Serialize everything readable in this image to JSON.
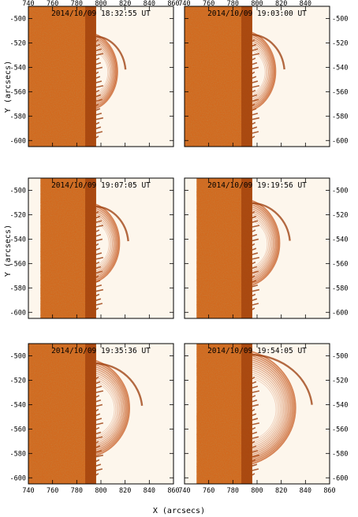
{
  "figure": {
    "x_axis_label": "X (arcsecs)",
    "y_axis_label": "Y (arcsecs)",
    "x_ticks": [
      "740",
      "760",
      "780",
      "800",
      "820",
      "840",
      "860"
    ],
    "y_ticks": [
      "-500",
      "-520",
      "-540",
      "-560",
      "-580",
      "-600"
    ],
    "panels": [
      {
        "timestamp": "2014/10/09 18:32:55 UT",
        "loop_extent": 0.45
      },
      {
        "timestamp": "2014/10/09 19:03:00 UT",
        "loop_extent": 0.5
      },
      {
        "timestamp": "2014/10/09 19:07:05 UT",
        "loop_extent": 0.5
      },
      {
        "timestamp": "2014/10/09 19:19:56 UT",
        "loop_extent": 0.6
      },
      {
        "timestamp": "2014/10/09 19:35:36 UT",
        "loop_extent": 0.75
      },
      {
        "timestamp": "2014/10/09 19:54:05 UT",
        "loop_extent": 1.0
      }
    ],
    "colors": {
      "disk": "#d2691e",
      "disk_dark": "#9a3a08",
      "loops": "#c4551a",
      "background": "#fdf6ec"
    }
  }
}
